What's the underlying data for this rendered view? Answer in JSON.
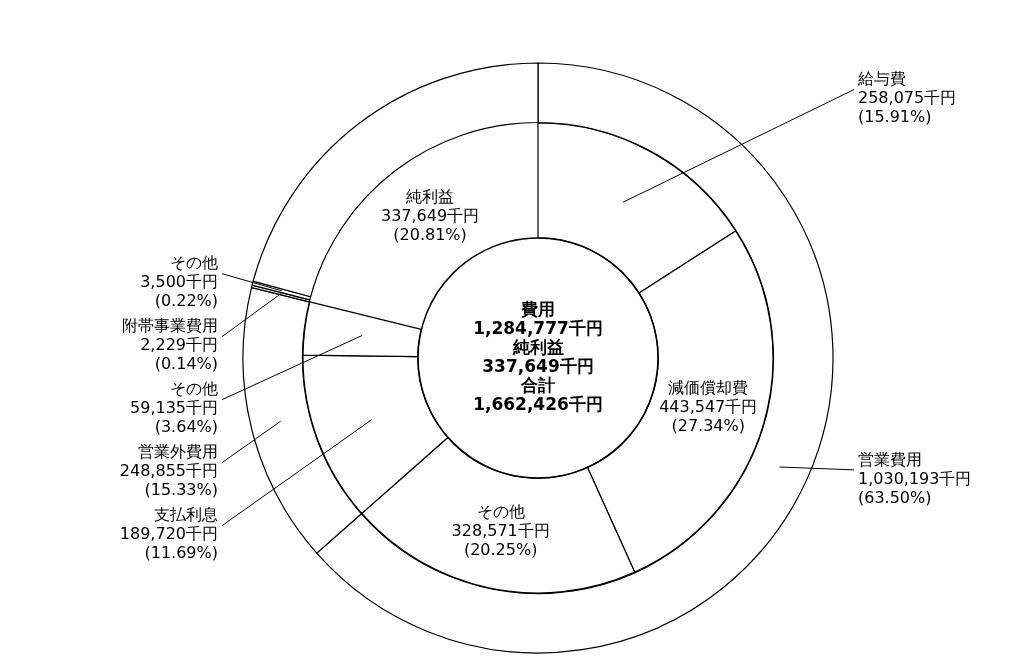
{
  "chart_data": [
    {
      "type": "donut",
      "categories": [
        "営業費用",
        "営業外費用",
        "附帯事業費用",
        "その他",
        "純利益"
      ],
      "values": [
        1030193,
        248855,
        2229,
        3500,
        337649
      ],
      "colors": [
        "#ffffff",
        "#ffffff",
        "#ffffff",
        "#ffffff",
        "#ffffff"
      ],
      "value_labels": [
        "1,030,193千円\n(63.50%)",
        "248,855千円\n(15.33%)",
        "2,229千円\n(0.14%)",
        "3,500千円\n(0.22%)",
        "337,649千円\n(20.81%)"
      ]
    },
    {
      "type": "donut",
      "categories": [
        "給与費",
        "減価償却費",
        "その他",
        "支払利息",
        "その他"
      ],
      "values": [
        258075,
        443547,
        328571,
        189720,
        59135
      ],
      "colors": [
        "#ffffff",
        "#ffffff",
        "#ffffff",
        "#ffffff",
        "#ffffff"
      ],
      "value_labels": [
        "258,075千円\n(15.91%)",
        "443,547千円\n(27.34%)",
        "328,571千円\n(20.25%)",
        "189,720千円\n(11.69%)",
        "59,135千円\n(3.64%)"
      ],
      "annotations": [
        "費用",
        "1,284,777千円",
        "純利益",
        "337,649千円",
        "合計",
        "1,662,426千円"
      ]
    }
  ]
}
